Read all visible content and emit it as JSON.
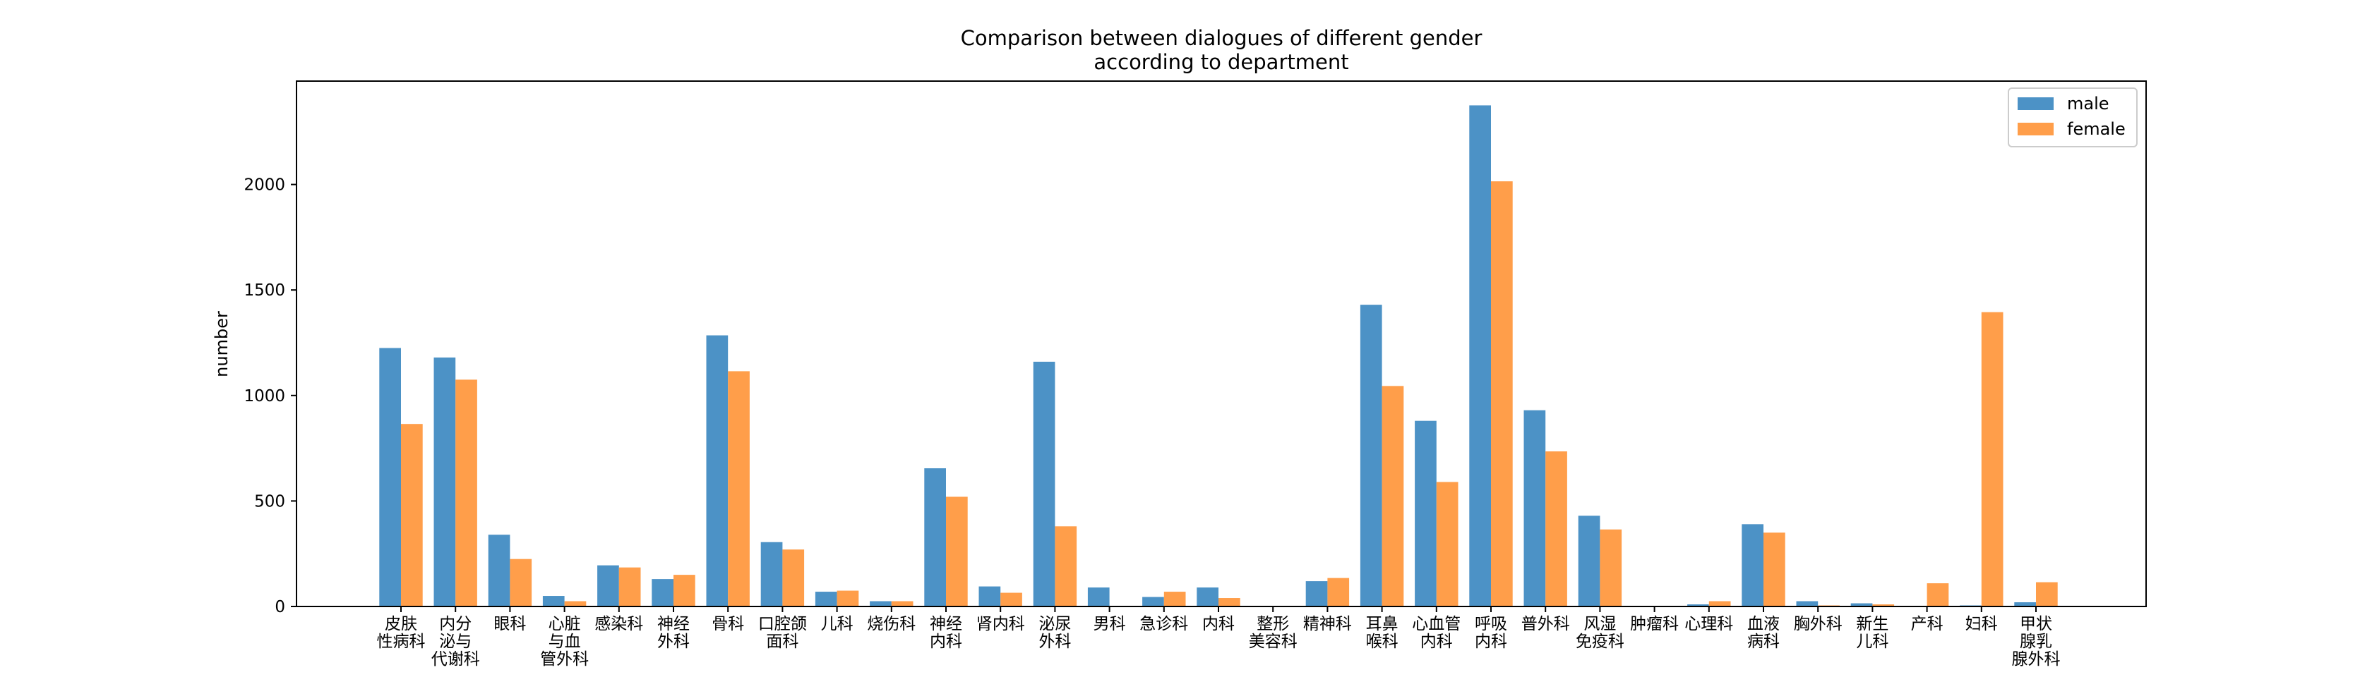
{
  "chart_data": {
    "type": "bar",
    "title_lines": [
      "Comparison between dialogues of different gender",
      "according to department"
    ],
    "xlabel": "",
    "ylabel": "number",
    "ylim": [
      0,
      2490
    ],
    "yticks": [
      0,
      500,
      1000,
      1500,
      2000
    ],
    "grid": false,
    "legend_position": "top-right",
    "categories": [
      [
        "皮肤",
        "性病科"
      ],
      [
        "内分",
        "泌与",
        "代谢科"
      ],
      [
        "眼科"
      ],
      [
        "心脏",
        "与血",
        "管外科"
      ],
      [
        "感染科"
      ],
      [
        "神经",
        "外科"
      ],
      [
        "骨科"
      ],
      [
        "口腔颌",
        "面科"
      ],
      [
        "儿科"
      ],
      [
        "烧伤科"
      ],
      [
        "神经",
        "内科"
      ],
      [
        "肾内科"
      ],
      [
        "泌尿",
        "外科"
      ],
      [
        "男科"
      ],
      [
        "急诊科"
      ],
      [
        "内科"
      ],
      [
        "整形",
        "美容科"
      ],
      [
        "精神科"
      ],
      [
        "耳鼻",
        "喉科"
      ],
      [
        "心血管",
        "内科"
      ],
      [
        "呼吸",
        "内科"
      ],
      [
        "普外科"
      ],
      [
        "风湿",
        "免疫科"
      ],
      [
        "肿瘤科"
      ],
      [
        "心理科"
      ],
      [
        "血液",
        "病科"
      ],
      [
        "胸外科"
      ],
      [
        "新生",
        "儿科"
      ],
      [
        "产科"
      ],
      [
        "妇科"
      ],
      [
        "甲状",
        "腺乳",
        "腺外科"
      ]
    ],
    "series": [
      {
        "name": "male",
        "color": "#4c92c6",
        "values": [
          1225,
          1180,
          340,
          50,
          195,
          130,
          1285,
          305,
          70,
          25,
          655,
          95,
          1160,
          90,
          45,
          90,
          0,
          120,
          1430,
          880,
          2375,
          930,
          430,
          0,
          10,
          390,
          25,
          15,
          0,
          5,
          20
        ]
      },
      {
        "name": "female",
        "color": "#ff9e4a",
        "values": [
          865,
          1075,
          225,
          25,
          185,
          150,
          1115,
          270,
          75,
          25,
          520,
          65,
          380,
          0,
          70,
          40,
          0,
          135,
          1045,
          590,
          2015,
          735,
          365,
          0,
          25,
          350,
          5,
          10,
          110,
          1395,
          115
        ]
      }
    ]
  }
}
